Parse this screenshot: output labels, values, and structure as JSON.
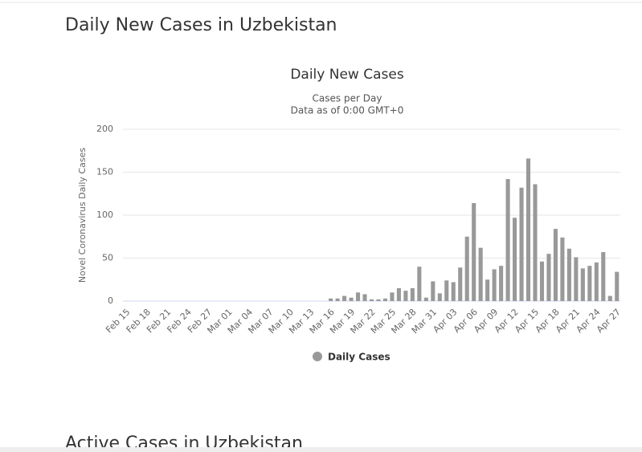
{
  "header": {
    "title": "Daily New Cases in Uzbekistan"
  },
  "chart_data": {
    "type": "bar",
    "title": "Daily New Cases",
    "subtitle": [
      "Cases per Day",
      "Data as of 0:00 GMT+0"
    ],
    "y_label": "Novel Coronavirus Daily Cases",
    "categories": [
      "Feb 15",
      null,
      null,
      "Feb 18",
      null,
      null,
      "Feb 21",
      null,
      null,
      "Feb 24",
      null,
      null,
      "Feb 27",
      null,
      null,
      "Mar 01",
      null,
      null,
      "Mar 04",
      null,
      null,
      "Mar 07",
      null,
      null,
      "Mar 10",
      null,
      null,
      "Mar 13",
      null,
      null,
      "Mar 16",
      null,
      null,
      "Mar 19",
      null,
      null,
      "Mar 22",
      null,
      null,
      "Mar 25",
      null,
      null,
      "Mar 28",
      null,
      null,
      "Mar 31",
      null,
      null,
      "Apr 03",
      null,
      null,
      "Apr 06",
      null,
      null,
      "Apr 09",
      null,
      null,
      "Apr 12",
      null,
      null,
      "Apr 15",
      null,
      null,
      "Apr 18",
      null,
      null,
      "Apr 21",
      null,
      null,
      "Apr 24",
      null,
      null,
      "Apr 27"
    ],
    "series": [
      {
        "name": "Daily Cases",
        "color": "#999999",
        "values": [
          0,
          0,
          0,
          0,
          0,
          0,
          0,
          0,
          0,
          0,
          0,
          0,
          0,
          0,
          0,
          0,
          0,
          0,
          0,
          0,
          0,
          0,
          0,
          0,
          0,
          0,
          0,
          0,
          0,
          0,
          3,
          3,
          6,
          4,
          10,
          8,
          2,
          2,
          3,
          10,
          15,
          12,
          15,
          40,
          4,
          23,
          9,
          24,
          22,
          39,
          75,
          114,
          62,
          25,
          37,
          41,
          142,
          97,
          132,
          166,
          136,
          46,
          55,
          84,
          74,
          61,
          51,
          38,
          41,
          45,
          57,
          6,
          34
        ]
      }
    ],
    "ylim": [
      0,
      200
    ],
    "yticks": [
      0,
      50,
      100,
      150,
      200
    ],
    "grid": true,
    "legend": "bottom"
  },
  "next_section": {
    "title": "Active Cases in Uzbekistan"
  }
}
